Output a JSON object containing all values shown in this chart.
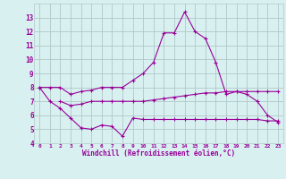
{
  "xlabel": "Windchill (Refroidissement éolien,°C)",
  "x": [
    0,
    1,
    2,
    3,
    4,
    5,
    6,
    7,
    8,
    9,
    10,
    11,
    12,
    13,
    14,
    15,
    16,
    17,
    18,
    19,
    20,
    21,
    22,
    23
  ],
  "line1": [
    8.0,
    8.0,
    8.0,
    7.5,
    7.7,
    7.8,
    8.0,
    8.0,
    8.0,
    8.5,
    9.0,
    9.8,
    11.9,
    11.9,
    13.4,
    12.0,
    11.5,
    9.8,
    7.5,
    7.7,
    7.5,
    7.0,
    6.0,
    5.5
  ],
  "line2": [
    8.0,
    7.0,
    6.5,
    5.8,
    5.1,
    5.0,
    5.3,
    5.2,
    4.5,
    5.8,
    5.7,
    5.7,
    5.7,
    5.7,
    5.7,
    5.7,
    5.7,
    5.7,
    5.7,
    5.7,
    5.7,
    5.7,
    5.6,
    5.6
  ],
  "line3": [
    null,
    null,
    7.0,
    6.7,
    6.8,
    7.0,
    7.0,
    7.0,
    7.0,
    7.0,
    7.0,
    7.1,
    7.2,
    7.3,
    7.4,
    7.5,
    7.6,
    7.6,
    7.7,
    7.7,
    7.7,
    7.7,
    7.7,
    7.7
  ],
  "line_color": "#990099",
  "bg_color": "#d8f0f0",
  "grid_color": "#b0c8c8",
  "ylim": [
    4,
    14
  ],
  "yticks": [
    4,
    5,
    6,
    7,
    8,
    9,
    10,
    11,
    12,
    13
  ],
  "xlim": [
    -0.5,
    23.5
  ]
}
